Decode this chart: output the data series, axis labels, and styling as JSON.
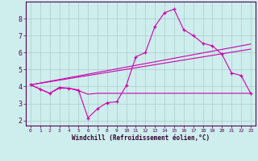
{
  "xlabel": "Windchill (Refroidissement éolien,°C)",
  "background_color": "#ceeeed",
  "grid_color": "#aacccc",
  "line_color": "#cc00aa",
  "xlim": [
    -0.5,
    23.5
  ],
  "ylim": [
    1.7,
    9.0
  ],
  "yticks": [
    2,
    3,
    4,
    5,
    6,
    7,
    8
  ],
  "xticks": [
    0,
    1,
    2,
    3,
    4,
    5,
    6,
    7,
    8,
    9,
    10,
    11,
    12,
    13,
    14,
    15,
    16,
    17,
    18,
    19,
    20,
    21,
    22,
    23
  ],
  "series_flat_x": [
    0,
    1,
    2,
    3,
    4,
    5,
    6,
    7,
    8,
    9,
    10,
    11,
    12,
    13,
    14,
    15,
    16,
    17,
    18,
    19,
    20,
    21,
    22,
    23
  ],
  "series_flat_y": [
    4.1,
    3.85,
    3.6,
    3.9,
    3.9,
    3.75,
    3.55,
    3.6,
    3.6,
    3.6,
    3.6,
    3.6,
    3.6,
    3.6,
    3.6,
    3.6,
    3.6,
    3.6,
    3.6,
    3.6,
    3.6,
    3.6,
    3.6,
    3.6
  ],
  "series_main_x": [
    0,
    1,
    2,
    3,
    4,
    5,
    6,
    7,
    8,
    9,
    10,
    11,
    12,
    13,
    14,
    15,
    16,
    17,
    18,
    19,
    20,
    21,
    22,
    23
  ],
  "series_main_y": [
    4.1,
    3.85,
    3.6,
    3.95,
    3.9,
    3.8,
    2.15,
    2.7,
    3.05,
    3.1,
    4.05,
    5.75,
    6.0,
    7.55,
    8.35,
    8.55,
    7.35,
    7.0,
    6.55,
    6.4,
    5.9,
    4.8,
    4.65,
    3.6
  ],
  "series_trend1_x": [
    0,
    23
  ],
  "series_trend1_y": [
    4.1,
    6.5
  ],
  "series_trend2_x": [
    0,
    23
  ],
  "series_trend2_y": [
    4.1,
    6.2
  ]
}
